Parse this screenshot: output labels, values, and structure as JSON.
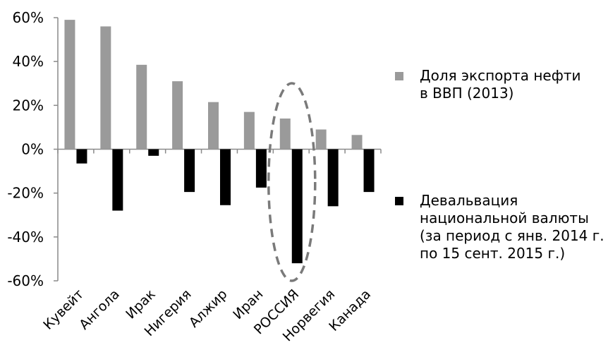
{
  "chart_data": {
    "type": "bar",
    "categories": [
      "Кувейт",
      "Ангола",
      "Ирак",
      "Нигерия",
      "Алжир",
      "Иран",
      "РОССИЯ",
      "Норвегия",
      "Канада"
    ],
    "series": [
      {
        "name": "Доля экспорта нефти в ВВП (2013)",
        "values": [
          59,
          56,
          38.5,
          31,
          21.5,
          17,
          14,
          9,
          6.5
        ],
        "color": "#9a9a9a"
      },
      {
        "name": "Девальвация национальной валюты (за период с янв. 2014 г. по 15 сент. 2015 г.)",
        "values": [
          -6.5,
          -28,
          -3,
          -19.5,
          -25.5,
          -17.5,
          -52,
          -26,
          -19.5
        ],
        "color": "#000000"
      }
    ],
    "ylim": [
      -60,
      60
    ],
    "yticks": [
      60,
      40,
      20,
      0,
      -20,
      -40,
      -60
    ],
    "ytick_labels": [
      "60%",
      "40%",
      "20%",
      "0%",
      "-20%",
      "-40%",
      "-60%"
    ],
    "legend_position": "right",
    "annotation": "dashed ellipse around РОССИЯ",
    "grid": false
  },
  "legend": {
    "item1_line1": "Доля экспорта нефти",
    "item1_line2": "в ВВП (2013)",
    "item2_line1": "Девальвация",
    "item2_line2": "национальной валюты",
    "item2_line3": "(за период с янв. 2014 г.",
    "item2_line4": "по 15 сент. 2015 г.)"
  }
}
